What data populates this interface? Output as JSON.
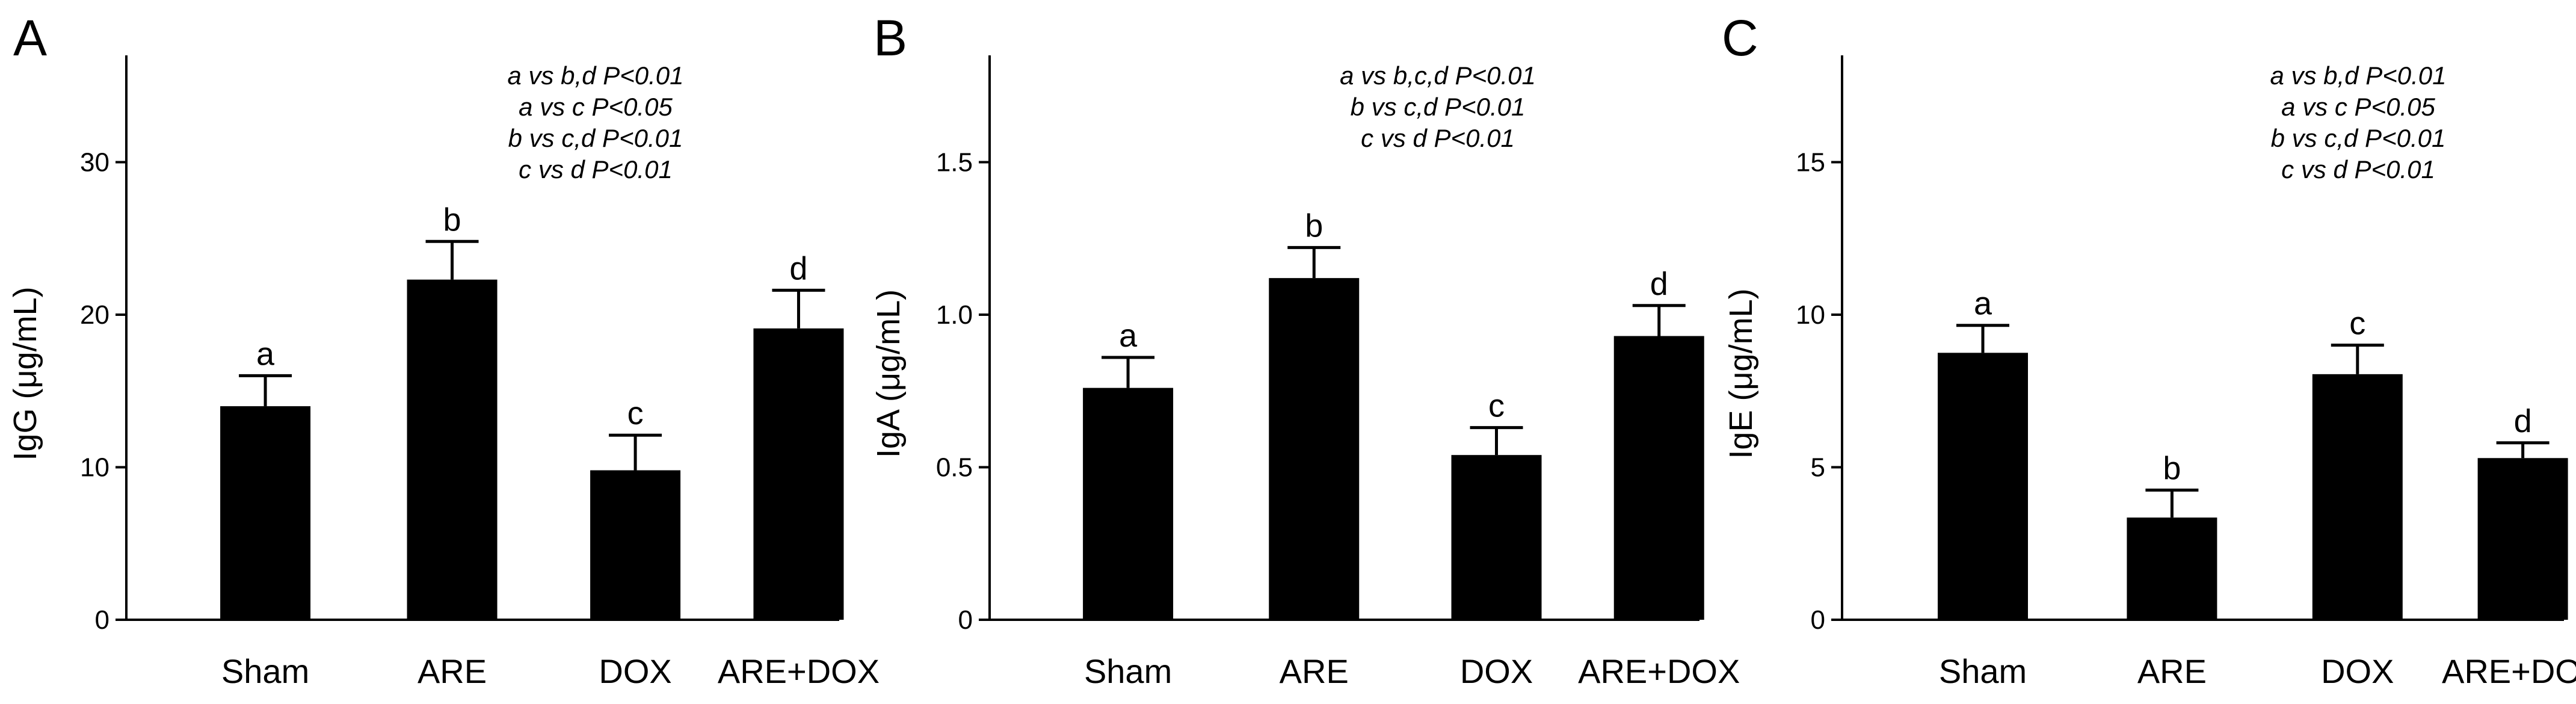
{
  "chart_data": [
    {
      "panel": "A",
      "type": "bar",
      "ylabel": "IgG (μg/mL)",
      "ylim": [
        0,
        37
      ],
      "yticks": [
        0,
        10,
        20,
        30
      ],
      "categories": [
        "Sham",
        "ARE",
        "DOX",
        "ARE+DOX"
      ],
      "values": [
        14.0,
        22.3,
        9.8,
        19.1
      ],
      "errors": [
        2.0,
        2.5,
        2.3,
        2.5
      ],
      "bar_labels": [
        "a",
        "b",
        "c",
        "d"
      ],
      "annotations": [
        "a vs b,d P<0.01",
        "a vs c P<0.05",
        "b vs c,d P<0.01",
        "c vs d P<0.01"
      ]
    },
    {
      "panel": "B",
      "type": "bar",
      "ylabel": "IgA (μg/mL)",
      "ylim": [
        0,
        1.85
      ],
      "yticks": [
        0,
        0.5,
        1.0,
        1.5
      ],
      "ytick_labels": [
        "0",
        "0.5",
        "1.0",
        "1.5"
      ],
      "categories": [
        "Sham",
        "ARE",
        "DOX",
        "ARE+DOX"
      ],
      "values": [
        0.76,
        1.12,
        0.54,
        0.93
      ],
      "errors": [
        0.1,
        0.1,
        0.09,
        0.1
      ],
      "bar_labels": [
        "a",
        "b",
        "c",
        "d"
      ],
      "annotations": [
        "a vs b,c,d P<0.01",
        "b vs c,d P<0.01",
        "c vs d P<0.01"
      ]
    },
    {
      "panel": "C",
      "type": "bar",
      "ylabel": "IgE (μg/mL)",
      "ylim": [
        0,
        18.5
      ],
      "yticks": [
        0,
        5,
        10,
        15
      ],
      "categories": [
        "Sham",
        "ARE",
        "DOX",
        "ARE+DOX"
      ],
      "values": [
        8.75,
        3.35,
        8.05,
        5.3
      ],
      "errors": [
        0.9,
        0.9,
        0.95,
        0.5
      ],
      "bar_labels": [
        "a",
        "b",
        "c",
        "d"
      ],
      "annotations": [
        "a vs b,d P<0.01",
        "a vs c P<0.05",
        "b vs c,d P<0.01",
        "c vs d P<0.01"
      ]
    }
  ]
}
